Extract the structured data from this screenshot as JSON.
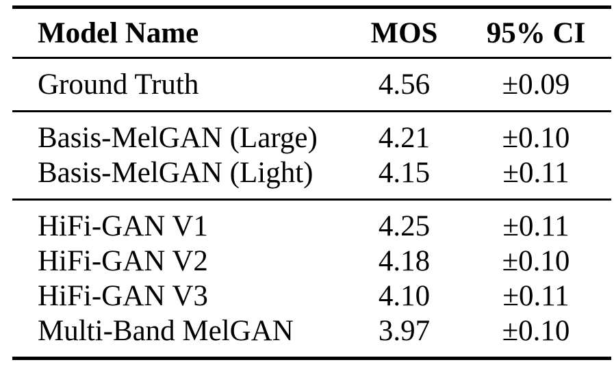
{
  "colors": {
    "text": "#000000",
    "background": "#ffffff",
    "rule": "#000000"
  },
  "table": {
    "columns": [
      "Model Name",
      "MOS",
      "95% CI"
    ],
    "sections": [
      {
        "rows": [
          {
            "model": "Ground Truth",
            "mos": "4.56",
            "ci": "±0.09"
          }
        ]
      },
      {
        "rows": [
          {
            "model": "Basis-MelGAN (Large)",
            "mos": "4.21",
            "ci": "±0.10"
          },
          {
            "model": "Basis-MelGAN (Light)",
            "mos": "4.15",
            "ci": "±0.11"
          }
        ]
      },
      {
        "rows": [
          {
            "model": "HiFi-GAN V1",
            "mos": "4.25",
            "ci": "±0.11"
          },
          {
            "model": "HiFi-GAN V2",
            "mos": "4.18",
            "ci": "±0.10"
          },
          {
            "model": "HiFi-GAN V3",
            "mos": "4.10",
            "ci": "±0.11"
          },
          {
            "model": "Multi-Band MelGAN",
            "mos": "3.97",
            "ci": "±0.10"
          }
        ]
      }
    ]
  }
}
